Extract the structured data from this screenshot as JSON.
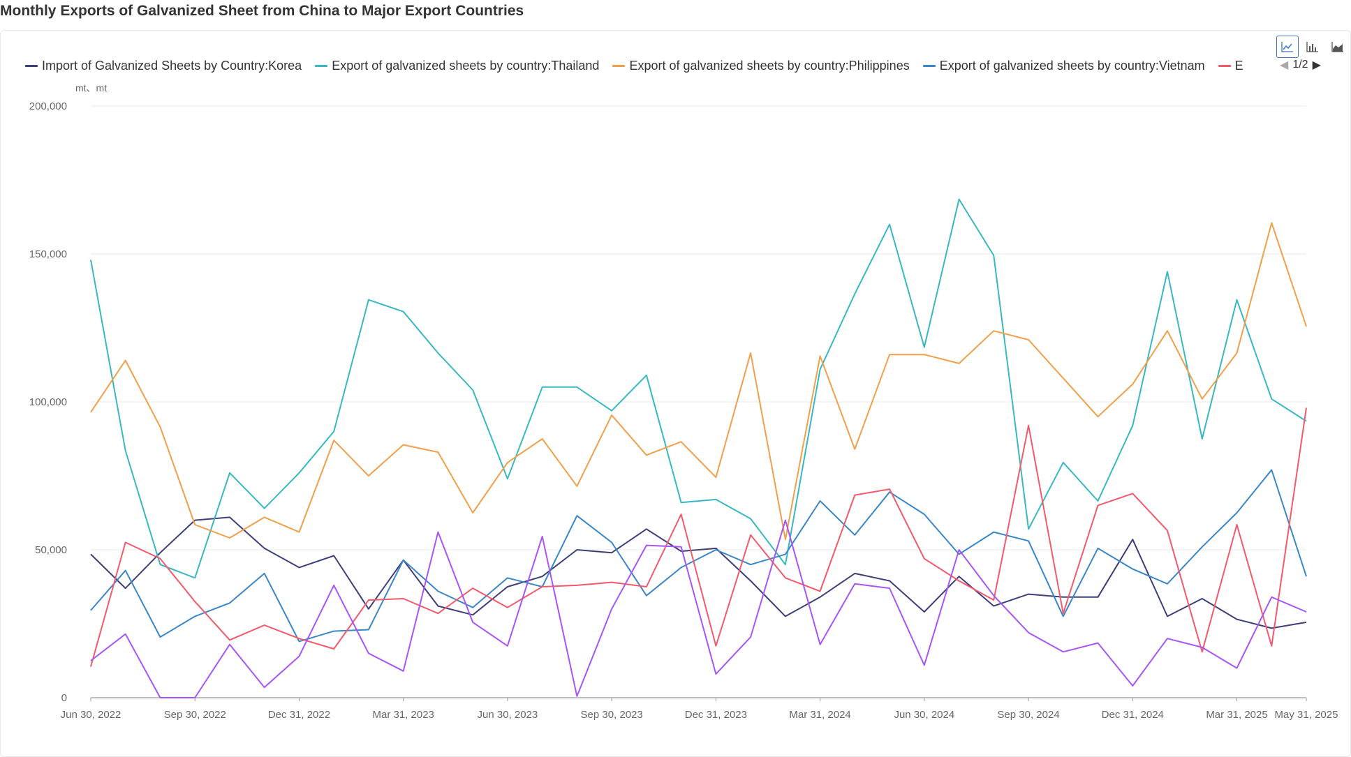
{
  "page": {
    "title": "Monthly Exports of Galvanized Sheet from China to Major Export Countries"
  },
  "legend": {
    "page_indicator": "1/2",
    "items": [
      {
        "label": "Import of Galvanized Sheets by Country:Korea",
        "color": "#3d3f7a"
      },
      {
        "label": "Export of galvanized sheets by country:Thailand",
        "color": "#37b8c2"
      },
      {
        "label": "Export of galvanized sheets by country:Philippines",
        "color": "#f0a04b"
      },
      {
        "label": "Export of galvanized sheets by country:Vietnam",
        "color": "#3a86c8"
      },
      {
        "label": "E",
        "color": "#f25a6b"
      }
    ]
  },
  "toolbar": {
    "icons": [
      "line-chart-icon",
      "bar-chart-icon",
      "area-chart-icon"
    ]
  },
  "chart_data": {
    "type": "line",
    "title": "Monthly Exports of Galvanized Sheet from China to Major Export Countries",
    "unit_label": "mt、mt",
    "ylim": [
      0,
      200000
    ],
    "y_ticks": [
      0,
      50000,
      100000,
      150000,
      200000
    ],
    "y_tick_labels": [
      "0",
      "50,000",
      "100,000",
      "150,000",
      "200,000"
    ],
    "x_tick_labels": [
      "Jun 30, 2022",
      "Sep 30, 2022",
      "Dec 31, 2022",
      "Mar 31, 2023",
      "Jun 30, 2023",
      "Sep 30, 2023",
      "Dec 31, 2023",
      "Mar 31, 2024",
      "Jun 30, 2024",
      "Sep 30, 2024",
      "Dec 31, 2024",
      "Mar 31, 2025",
      "May 31, 2025"
    ],
    "x_tick_indices": [
      0,
      3,
      6,
      9,
      12,
      15,
      18,
      21,
      24,
      27,
      30,
      33,
      35
    ],
    "categories": [
      "Jun 2022",
      "Jul 2022",
      "Aug 2022",
      "Sep 2022",
      "Oct 2022",
      "Nov 2022",
      "Dec 2022",
      "Jan 2023",
      "Feb 2023",
      "Mar 2023",
      "Apr 2023",
      "May 2023",
      "Jun 2023",
      "Jul 2023",
      "Aug 2023",
      "Sep 2023",
      "Oct 2023",
      "Nov 2023",
      "Dec 2023",
      "Jan 2024",
      "Feb 2024",
      "Mar 2024",
      "Apr 2024",
      "May 2024",
      "Jun 2024",
      "Jul 2024",
      "Aug 2024",
      "Sep 2024",
      "Oct 2024",
      "Nov 2024",
      "Dec 2024",
      "Jan 2025",
      "Feb 2025",
      "Mar 2025",
      "Apr 2025",
      "May 2025"
    ],
    "grid": true,
    "legend_position": "top",
    "series": [
      {
        "name": "Import of Galvanized Sheets by Country:Korea",
        "color": "#3d3f7a",
        "values": [
          48500,
          37000,
          49000,
          60000,
          61000,
          50500,
          44000,
          48000,
          30000,
          46500,
          31000,
          28000,
          37500,
          41000,
          50000,
          49000,
          57000,
          49500,
          50500,
          39500,
          27500,
          34000,
          42000,
          39500,
          29000,
          41000,
          31000,
          35000,
          34000,
          34000,
          53500,
          27500,
          33500,
          26500,
          23500,
          25500
        ]
      },
      {
        "name": "Export of galvanized sheets by country:Thailand",
        "color": "#37b8c2",
        "values": [
          148000,
          83500,
          45000,
          40500,
          76000,
          64000,
          76000,
          90000,
          134500,
          130500,
          116500,
          104000,
          74000,
          105000,
          105000,
          97000,
          109000,
          66000,
          67000,
          60500,
          45000,
          111000,
          136500,
          160000,
          118500,
          168500,
          149500,
          57000,
          79500,
          66500,
          92000,
          144000,
          87500,
          134500,
          101000,
          93500
        ]
      },
      {
        "name": "Export of galvanized sheets by country:Philippines",
        "color": "#f0a04b",
        "values": [
          96500,
          114000,
          91500,
          58500,
          54000,
          61000,
          56000,
          87000,
          75000,
          85500,
          83000,
          62500,
          79500,
          87500,
          71500,
          95500,
          82000,
          86500,
          74500,
          116500,
          53500,
          115500,
          84000,
          116000,
          116000,
          113000,
          124000,
          121000,
          108000,
          95000,
          106000,
          124000,
          101000,
          116500,
          160500,
          125500
        ]
      },
      {
        "name": "Export of galvanized sheets by country:Vietnam",
        "color": "#3a86c8",
        "values": [
          29500,
          43000,
          20500,
          27500,
          32000,
          42000,
          19000,
          22500,
          23000,
          46500,
          36000,
          30500,
          40500,
          37500,
          61500,
          52500,
          34500,
          44000,
          50000,
          45000,
          48500,
          66500,
          55000,
          69500,
          62000,
          48500,
          56000,
          53000,
          27500,
          50500,
          43500,
          38500,
          51000,
          62500,
          77000,
          41000
        ]
      },
      {
        "name": "E",
        "color": "#f25a6b",
        "values": [
          10500,
          52500,
          47000,
          32500,
          19500,
          24500,
          20000,
          16500,
          33000,
          33500,
          28500,
          37000,
          30500,
          37500,
          38000,
          39000,
          37500,
          62000,
          17500,
          55000,
          40500,
          36000,
          68500,
          70500,
          47000,
          39500,
          33000,
          92000,
          28500,
          65000,
          69000,
          56500,
          15500,
          58500,
          17500,
          98000
        ]
      },
      {
        "name": "",
        "color": "#a855f7",
        "values": [
          12500,
          21500,
          0,
          0,
          18000,
          3500,
          14000,
          38000,
          15000,
          9000,
          56000,
          25500,
          17500,
          54500,
          500,
          30000,
          51500,
          51000,
          8000,
          20500,
          60000,
          18000,
          38500,
          37000,
          11000,
          50000,
          34500,
          22000,
          15500,
          18500,
          4000,
          20000,
          17000,
          10000,
          34000,
          29000
        ]
      }
    ]
  }
}
